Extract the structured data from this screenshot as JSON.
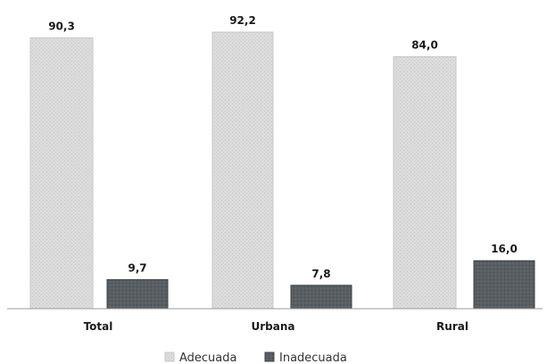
{
  "chart_data": {
    "type": "bar",
    "categories": [
      "Total",
      "Urbana",
      "Rural"
    ],
    "series": [
      {
        "name": "Adecuada",
        "values": [
          90.3,
          92.2,
          84.0
        ],
        "value_labels": [
          "90,3",
          "92,2",
          "84,0"
        ],
        "color": "#d9d9d9"
      },
      {
        "name": "Inadecuada",
        "values": [
          9.7,
          7.8,
          16.0
        ],
        "value_labels": [
          "9,7",
          "7,8",
          "16,0"
        ],
        "color": "#555a5e"
      }
    ],
    "title": "",
    "xlabel": "",
    "ylabel": "",
    "ylim": [
      0,
      100
    ],
    "grid": false,
    "legend_position": "bottom-center"
  }
}
